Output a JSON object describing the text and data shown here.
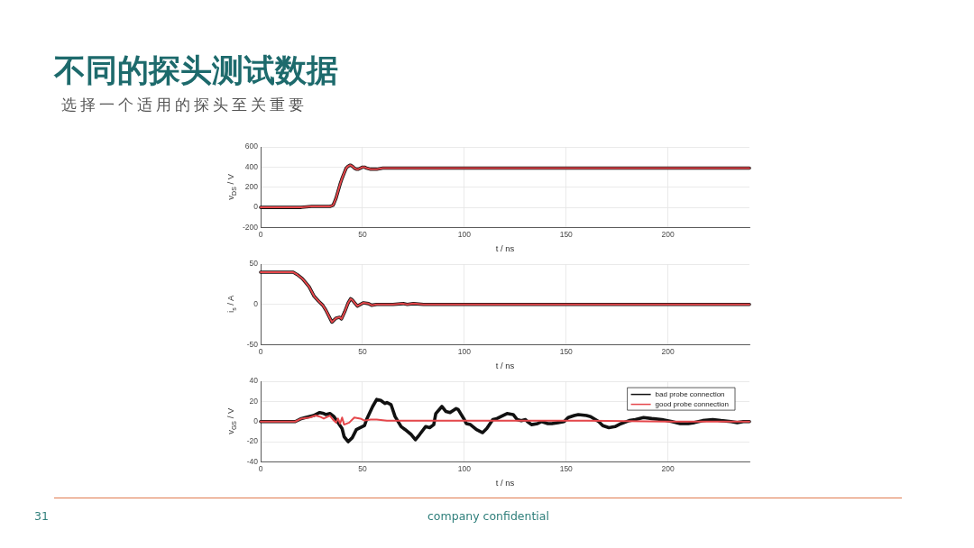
{
  "chart_data": [
    {
      "type": "line",
      "title": "不同的探头测试数据",
      "subtitle": "选择一个适用的探头至关重要",
      "annotations": [
        "31",
        "company confidential"
      ],
      "xlabel": "t / ns",
      "ylabel": "v$_{DS}$ / V",
      "xlim": [
        0,
        240
      ],
      "xticks": [
        0,
        50,
        100,
        150,
        200
      ],
      "ylim": [
        -200,
        600
      ],
      "yticks": [
        -200,
        0,
        200,
        400,
        600
      ],
      "grid": true,
      "x": [
        0,
        10,
        15,
        20,
        25,
        28,
        32,
        34,
        35.5,
        36,
        37,
        38,
        39,
        40,
        41,
        42,
        43,
        44,
        45,
        46,
        47,
        48,
        49,
        50,
        51,
        52,
        54,
        55,
        57,
        60,
        65,
        80,
        100,
        150,
        200,
        240
      ],
      "series": [
        {
          "color": "#111111",
          "values": [
            0,
            0,
            0,
            0,
            10,
            10,
            10,
            10,
            20,
            40,
            90,
            160,
            230,
            290,
            340,
            390,
            410,
            420,
            410,
            390,
            380,
            380,
            390,
            400,
            400,
            390,
            380,
            380,
            380,
            390,
            390,
            390,
            390,
            390,
            390,
            390
          ]
        },
        {
          "color": "#e5474b",
          "values": [
            0,
            0,
            0,
            0,
            10,
            10,
            10,
            10,
            20,
            40,
            90,
            160,
            230,
            290,
            340,
            390,
            410,
            420,
            410,
            390,
            380,
            380,
            390,
            400,
            400,
            390,
            380,
            380,
            380,
            390,
            390,
            390,
            390,
            390,
            390,
            390
          ]
        }
      ]
    },
    {
      "type": "line",
      "xlabel": "t / ns",
      "ylabel": "i$_{s}$ / A",
      "xlim": [
        0,
        240
      ],
      "xticks": [
        0,
        50,
        100,
        150,
        200
      ],
      "ylim": [
        -50,
        50
      ],
      "yticks": [
        -50,
        0,
        50
      ],
      "grid": true,
      "x": [
        0,
        10,
        16,
        18,
        20.5,
        23.8,
        26.3,
        28.5,
        30.5,
        32,
        35,
        37,
        38.8,
        39.7,
        41.3,
        43,
        44.2,
        45.2,
        47.5,
        50.5,
        53,
        54.5,
        57,
        65,
        70,
        72,
        75,
        80,
        100,
        150,
        200,
        240
      ],
      "series": [
        {
          "color": "#111111",
          "values": [
            40,
            40,
            40,
            37,
            32,
            22,
            10,
            4,
            -1,
            -7,
            -22,
            -17,
            -16,
            -18,
            -9,
            2,
            7,
            5,
            -2,
            2,
            1,
            -1,
            0,
            0,
            1,
            0,
            1,
            0,
            0,
            0,
            0,
            0
          ]
        },
        {
          "color": "#e5474b",
          "values": [
            40,
            40,
            40,
            37,
            32,
            22,
            10,
            4,
            -1,
            -7,
            -22,
            -17,
            -16,
            -18,
            -9,
            2,
            7,
            5,
            -2,
            2,
            1,
            -1,
            0,
            0,
            1,
            0,
            1,
            0,
            0,
            0,
            0,
            0
          ]
        }
      ]
    },
    {
      "type": "line",
      "xlabel": "t / ns",
      "ylabel": "v$_{GS}$ / V",
      "xlim": [
        0,
        240
      ],
      "xticks": [
        0,
        50,
        100,
        150,
        200
      ],
      "ylim": [
        -40,
        40
      ],
      "yticks": [
        -40,
        -20,
        0,
        20,
        40
      ],
      "grid": true,
      "legend": "top right",
      "series": [
        {
          "name": "bad probe connection",
          "color": "#111111",
          "x": [
            0,
            17,
            20,
            22,
            26,
            29,
            31,
            32,
            34,
            36,
            37,
            40,
            41,
            43,
            45,
            47,
            49,
            51,
            52,
            55,
            57,
            59,
            61,
            62,
            64,
            66,
            69,
            71,
            74,
            76,
            78,
            81,
            83,
            85,
            86,
            89,
            91,
            93,
            96,
            97,
            100,
            101,
            103,
            106,
            109,
            111,
            114,
            116,
            118,
            121,
            124,
            126,
            128,
            130,
            131,
            133,
            136,
            138,
            141,
            143,
            146,
            149,
            151,
            154,
            156,
            160,
            162,
            166,
            168,
            171,
            174,
            177,
            181,
            184,
            188,
            192,
            197,
            202,
            206,
            210,
            213,
            217,
            222,
            226,
            231,
            234,
            237,
            240
          ],
          "values": [
            0,
            0,
            3,
            4,
            6,
            9,
            8,
            7,
            8,
            5,
            2,
            -7,
            -15,
            -20,
            -16,
            -8,
            -6,
            -4,
            2,
            15,
            22,
            21,
            18,
            19,
            17,
            5,
            -5,
            -8,
            -13,
            -18,
            -13,
            -5,
            -6,
            -3,
            8,
            15,
            10,
            9,
            13,
            12,
            2,
            -2,
            -3,
            -8,
            -11,
            -7,
            2,
            3,
            5,
            8,
            7,
            2,
            1,
            2,
            0,
            -3,
            -2,
            0,
            -2,
            -2,
            -1,
            0,
            4,
            6,
            7,
            6,
            5,
            0,
            -4,
            -6,
            -5,
            -2,
            1,
            2,
            4,
            3,
            2,
            0,
            -2,
            -2,
            -1,
            1,
            2,
            1,
            0,
            -1,
            0,
            0
          ]
        },
        {
          "name": "good probe connection",
          "color": "#e5474b",
          "x": [
            0,
            17,
            20,
            24,
            27,
            29,
            31,
            34,
            35.5,
            37,
            38,
            39,
            40,
            41,
            43.5,
            46,
            49,
            51,
            54,
            57,
            62,
            69,
            82,
            120,
            160,
            200,
            240
          ],
          "values": [
            0,
            0,
            3,
            4,
            6,
            5,
            3,
            6,
            2,
            -1,
            3,
            -2,
            4,
            -3,
            -1,
            4,
            3,
            1,
            2,
            2,
            1,
            1,
            1,
            1,
            1,
            0,
            0
          ]
        }
      ]
    }
  ]
}
